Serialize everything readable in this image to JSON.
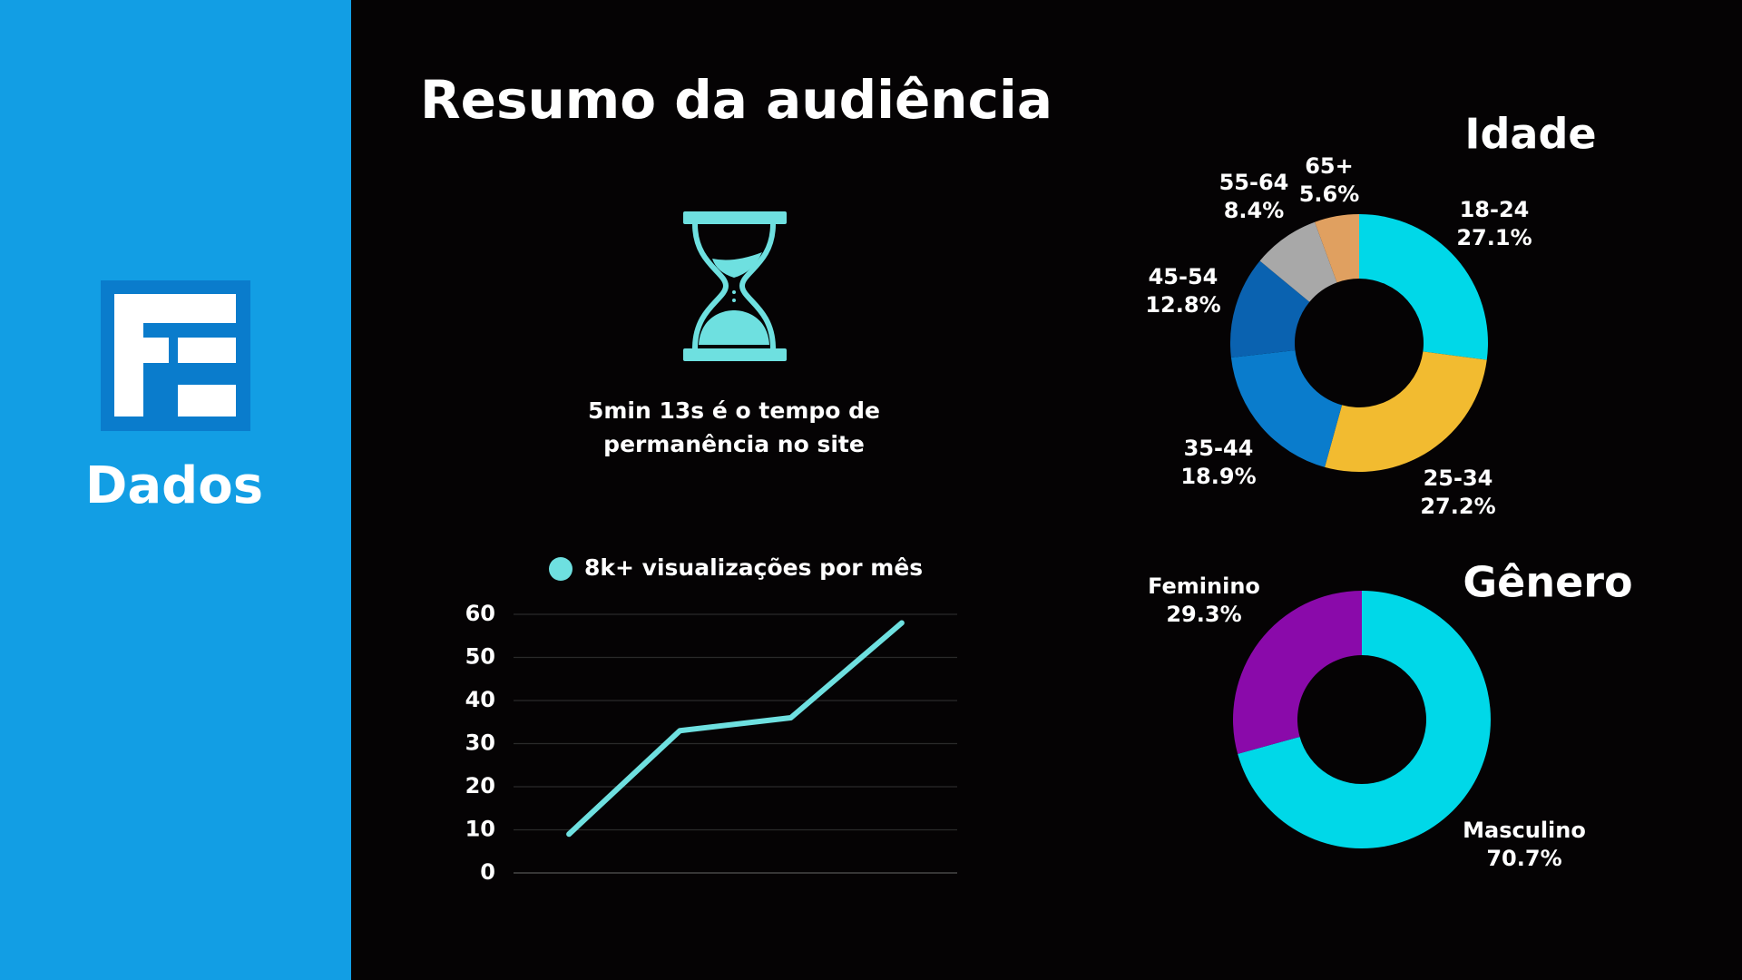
{
  "sidebar": {
    "label": "Dados"
  },
  "title": "Resumo da audiência",
  "stat": {
    "lines": [
      "5min 13s é o tempo de",
      "permanência no site"
    ]
  },
  "chart_data": [
    {
      "type": "line",
      "categories": [
        null,
        null,
        null,
        null
      ],
      "series": [
        {
          "name": "8k+ visualizações por mês",
          "color": "#6ee0e0",
          "values": [
            9,
            33,
            36,
            58
          ]
        }
      ],
      "ylim": [
        0,
        60
      ],
      "yticks": [
        0,
        10,
        20,
        30,
        40,
        50,
        60
      ],
      "grid": true
    },
    {
      "type": "donut",
      "title": "Idade",
      "categories": [
        "18-24",
        "25-34",
        "35-44",
        "45-54",
        "55-64",
        "65+"
      ],
      "values": [
        27.1,
        27.2,
        18.9,
        12.8,
        8.4,
        5.6
      ],
      "value_labels": [
        "27.1%",
        "27.2%",
        "18.9%",
        "12.8%",
        "8.4%",
        "5.6%"
      ],
      "colors": [
        "#00d8e8",
        "#f2bb30",
        "#0a7ccc",
        "#0a62b0",
        "#a8a8a8",
        "#e0a060"
      ]
    },
    {
      "type": "donut",
      "title": "Gênero",
      "categories": [
        "Masculino",
        "Feminino"
      ],
      "values": [
        70.7,
        29.3
      ],
      "value_labels": [
        "70.7%",
        "29.3%"
      ],
      "colors": [
        "#00d8e8",
        "#8a0aaa"
      ]
    }
  ]
}
